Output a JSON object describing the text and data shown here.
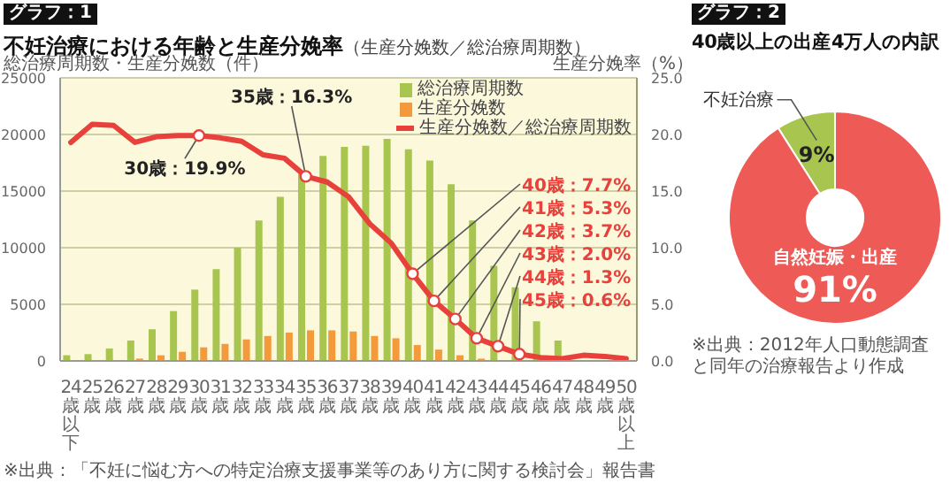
{
  "chart_data": [
    {
      "type": "bar",
      "title": "不妊治療における年齢と生産分娩率",
      "subtitle": "（生産分娩数／総治療周期数）",
      "ylabel": "総治療周期数・生産分娩数（件）",
      "y2label": "生産分娩率（%）",
      "categories": [
        "24歳以下",
        "25歳",
        "26歳",
        "27歳",
        "28歳",
        "29歳",
        "30歳",
        "31歳",
        "32歳",
        "33歳",
        "34歳",
        "35歳",
        "36歳",
        "37歳",
        "38歳",
        "39歳",
        "40歳",
        "41歳",
        "42歳",
        "43歳",
        "44歳",
        "45歳",
        "46歳",
        "47歳",
        "48歳",
        "49歳",
        "50歳以上"
      ],
      "series": [
        {
          "name": "総治療周期数",
          "type": "bar",
          "color": "#a8c64f",
          "values": [
            500,
            600,
            1100,
            1800,
            2800,
            4400,
            6300,
            8100,
            10000,
            12400,
            14500,
            16500,
            18100,
            18900,
            19000,
            19600,
            18700,
            17700,
            15600,
            12400,
            8400,
            6500,
            3500,
            1800,
            null,
            null,
            null
          ]
        },
        {
          "name": "生産分娩数",
          "type": "bar",
          "color": "#f39a3c",
          "values": [
            null,
            null,
            null,
            200,
            500,
            800,
            1200,
            1500,
            1900,
            2200,
            2500,
            2700,
            2700,
            2600,
            2200,
            2000,
            1400,
            1000,
            500,
            200,
            null,
            null,
            null,
            null,
            null,
            null,
            null
          ]
        },
        {
          "name": "生産分娩数／総治療周期数",
          "type": "line",
          "axis": "y2",
          "color": "#e8413c",
          "values": [
            19.3,
            20.9,
            20.8,
            19.3,
            19.8,
            19.9,
            19.9,
            19.7,
            19.4,
            18.2,
            17.9,
            16.3,
            15.8,
            14.5,
            12.1,
            10.4,
            7.7,
            5.3,
            3.7,
            2.0,
            1.3,
            0.6,
            0.3,
            0.2,
            0.5,
            0.4,
            0.2
          ]
        }
      ],
      "ylim": [
        0,
        25000
      ],
      "yticks": [
        0,
        5000,
        10000,
        15000,
        20000,
        25000
      ],
      "y2lim": [
        0,
        25
      ],
      "y2ticks": [
        {
          "value": 0,
          "label": "0.0"
        },
        {
          "value": 5,
          "label": "5.0"
        },
        {
          "value": 10,
          "label": "10.0"
        },
        {
          "value": 15,
          "label": "15.0"
        },
        {
          "value": 20,
          "label": "20.0"
        },
        {
          "value": 25,
          "label": "25.0"
        }
      ],
      "grid": "y",
      "legend": "top right",
      "annotations": [
        "グラフ：1",
        {
          "text": "30歳：19.9%",
          "x": "30歳",
          "y": 19900
        },
        {
          "text": "35歳：16.3%",
          "x": "35歳",
          "y": 16300
        },
        {
          "text": "40歳：7.7%",
          "x": "40歳",
          "y": 7700
        },
        {
          "text": "41歳：5.3%",
          "x": "41歳",
          "y": 5300
        },
        {
          "text": "42歳：3.7%",
          "x": "42歳",
          "y": 3700
        },
        {
          "text": "43歳：2.0%",
          "x": "43歳",
          "y": 2000
        },
        {
          "text": "44歳：1.3%",
          "x": "44歳",
          "y": 1300
        },
        {
          "text": "45歳：0.6%",
          "x": "45歳",
          "y": 600
        },
        "※出典：「不妊に悩む方への特定治療支援事業等のあり方に関する検討会」報告書"
      ]
    },
    {
      "type": "donut",
      "title": "40歳以上の出産4万人の内訳",
      "categories": [
        "不妊治療",
        "自然妊娠・出産"
      ],
      "values": [
        9,
        91
      ],
      "colors": [
        "#a8c64f",
        "#ee5a56"
      ],
      "value_labels": [
        "9%",
        "91%"
      ],
      "annotations": [
        "グラフ：2",
        "※出典：2012年人口動態調査と同年の治療報告より作成"
      ]
    }
  ]
}
